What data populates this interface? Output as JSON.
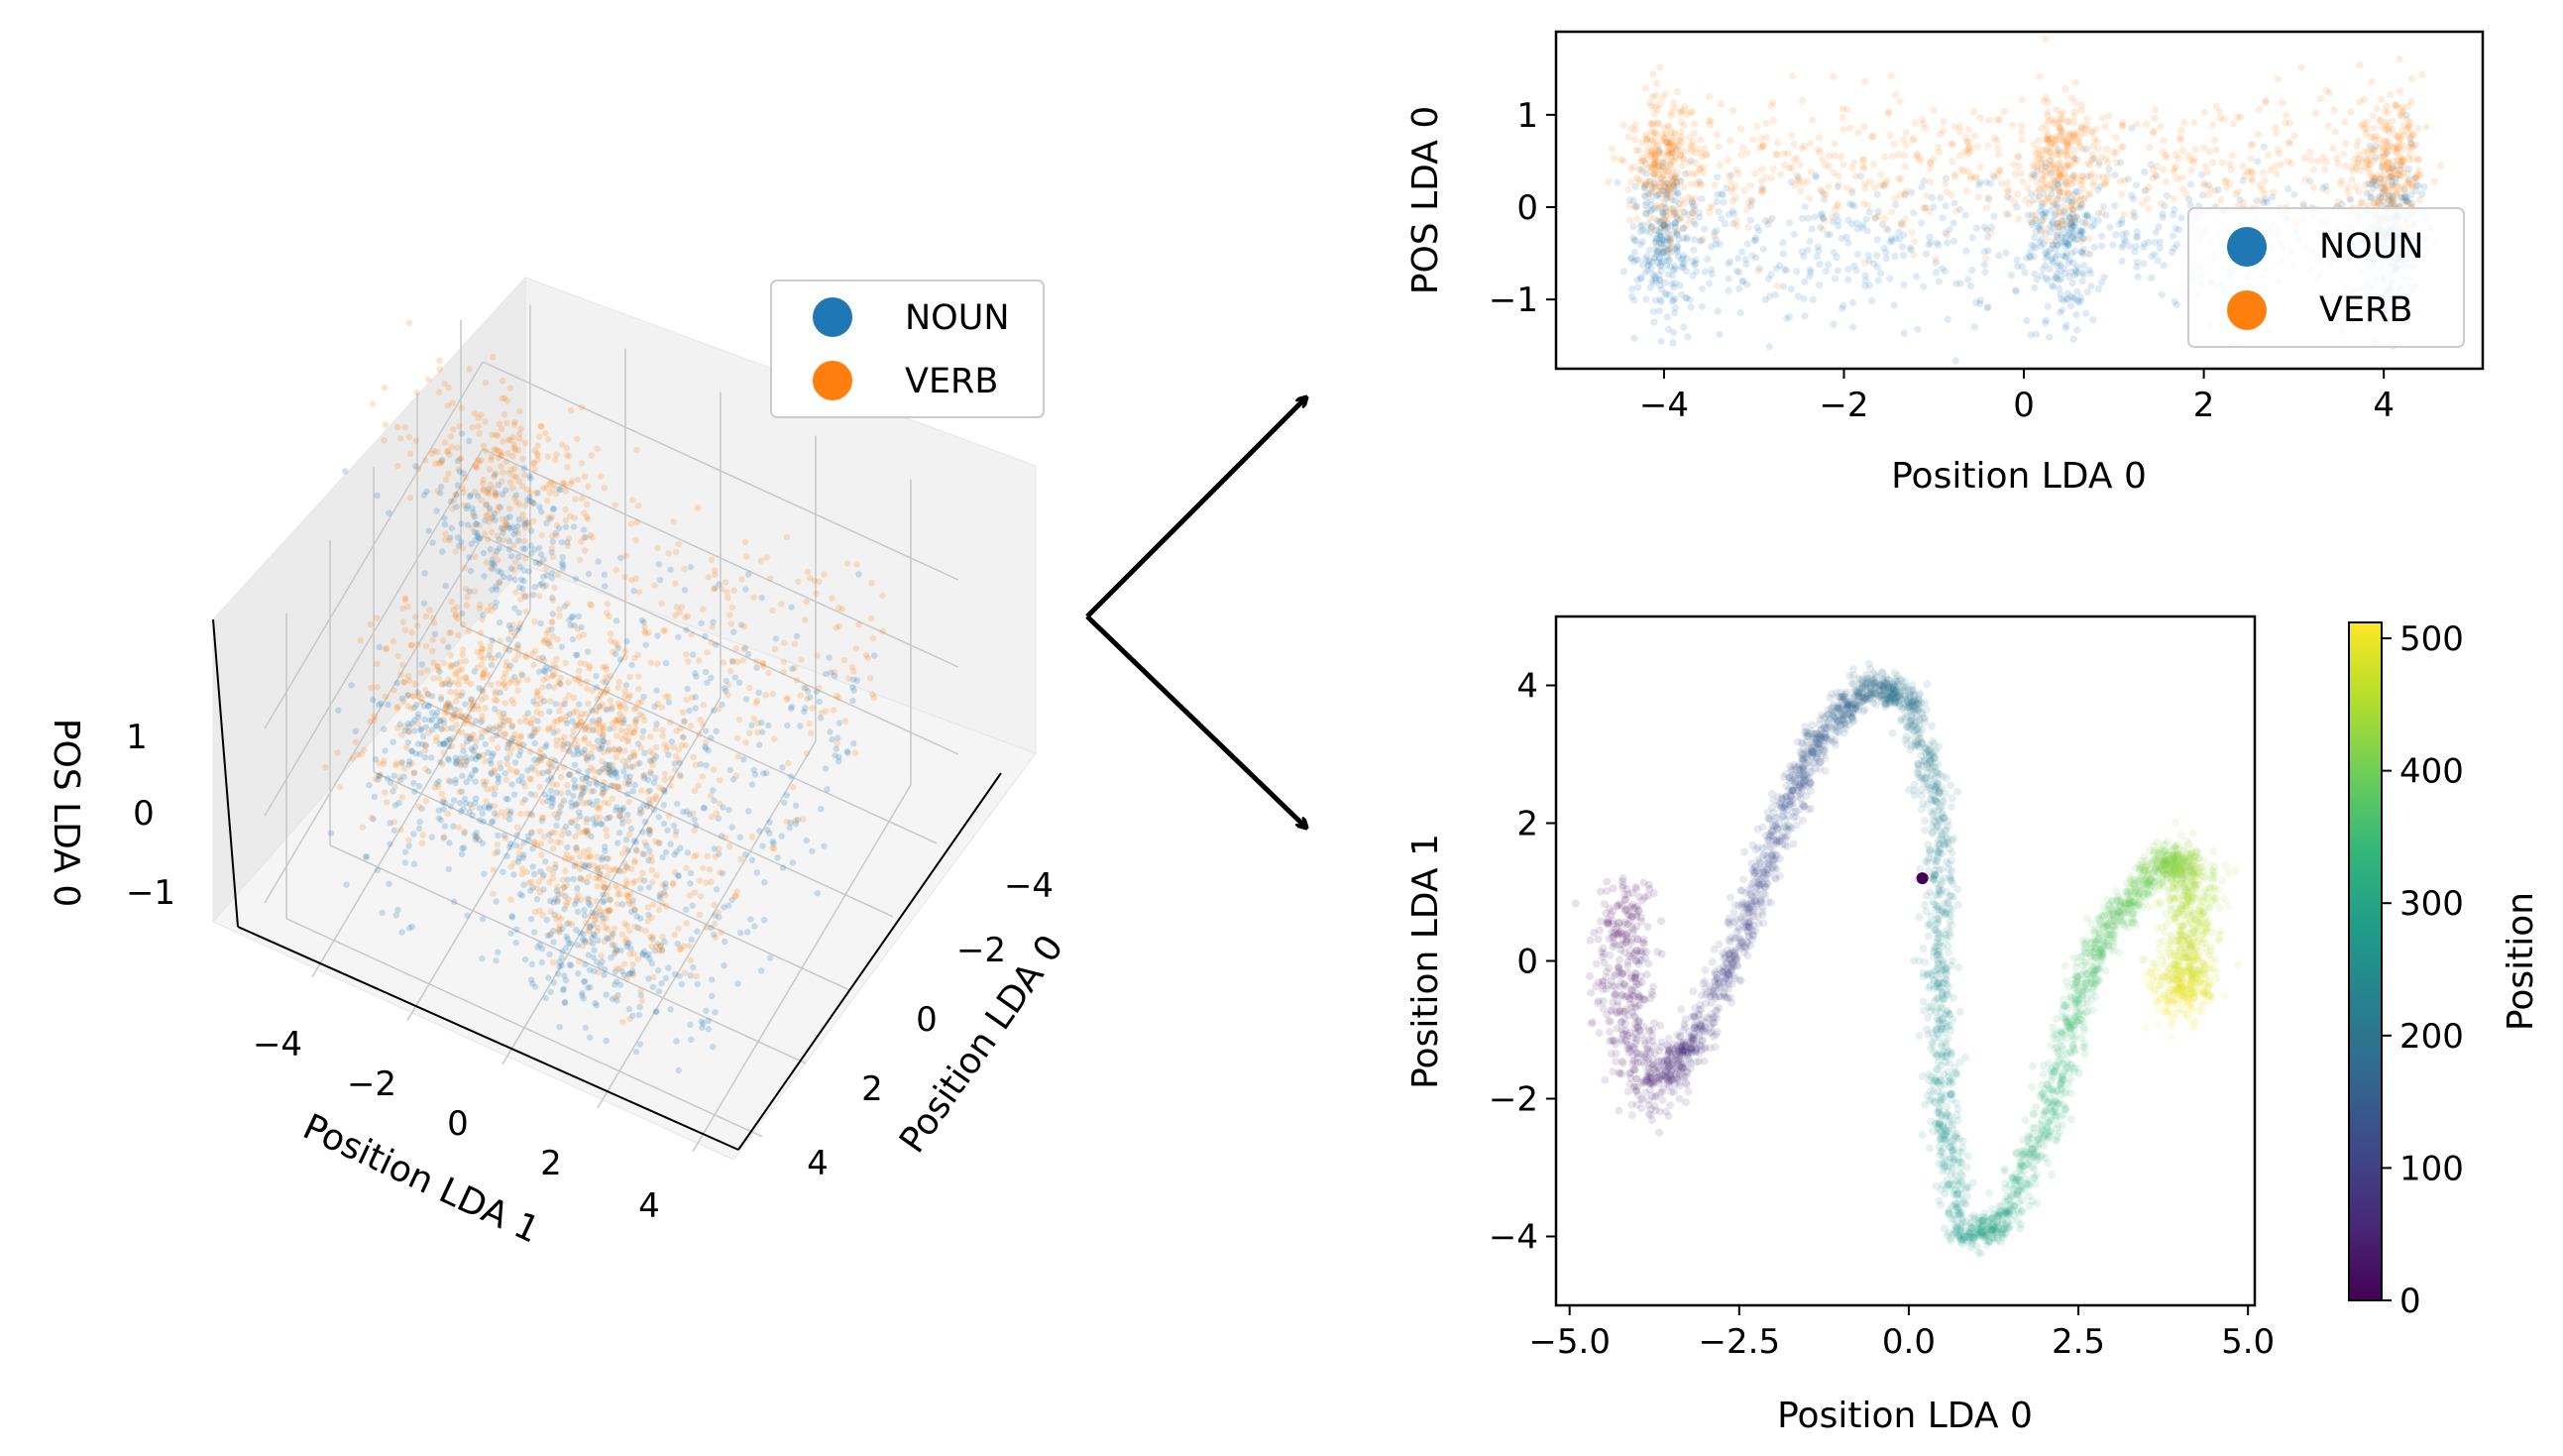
{
  "colors": {
    "noun": "#1f77b4",
    "verb": "#ff7f0e",
    "viridis": [
      "#440154",
      "#482878",
      "#3e4989",
      "#31688e",
      "#26828e",
      "#1f9e89",
      "#35b779",
      "#6ece58",
      "#b5de2b",
      "#fde725"
    ]
  },
  "legend": {
    "noun": "NOUN",
    "verb": "VERB"
  },
  "chart_data": [
    {
      "id": "3d",
      "type": "scatter",
      "projection": "3d",
      "xlabel": "Position LDA 0",
      "ylabel": "Position LDA 1",
      "zlabel": "POS LDA 0",
      "xticks": [
        "−4",
        "−2",
        "0",
        "2",
        "4"
      ],
      "yticks": [
        "−4",
        "−2",
        "0",
        "2",
        "4"
      ],
      "zticks": [
        "1",
        "0",
        "−1"
      ],
      "xlim": [
        -5,
        5
      ],
      "ylim": [
        -5,
        5
      ],
      "zlim": [
        -1.6,
        1.9
      ],
      "legend_position": "upper right",
      "clusters": [
        {
          "x": -4.0,
          "y": -4.2,
          "z": 0.2
        },
        {
          "x": 0.5,
          "y": 0.0,
          "z": 0.3
        },
        {
          "x": 4.1,
          "y": 1.5,
          "z": 0.3
        },
        {
          "x": 1.2,
          "y": -2.5,
          "z": 0.2
        }
      ]
    },
    {
      "id": "pos",
      "type": "scatter",
      "xlabel": "Position LDA 0",
      "ylabel": "POS LDA 0",
      "xlim": [
        -5.2,
        5.1
      ],
      "ylim": [
        -1.75,
        1.9
      ],
      "xticks": [
        {
          "v": -4,
          "t": "−4"
        },
        {
          "v": -2,
          "t": "−2"
        },
        {
          "v": 0,
          "t": "0"
        },
        {
          "v": 2,
          "t": "2"
        },
        {
          "v": 4,
          "t": "4"
        }
      ],
      "yticks": [
        {
          "v": 1,
          "t": "1"
        },
        {
          "v": 0,
          "t": "0"
        },
        {
          "v": -1,
          "t": "−1"
        }
      ],
      "legend_position": "lower right",
      "series": [
        {
          "name": "NOUN",
          "mean_y": -0.35,
          "spread_y": 0.42
        },
        {
          "name": "VERB",
          "mean_y": 0.45,
          "spread_y": 0.38
        }
      ],
      "dense_x_centers": [
        -4.0,
        0.45,
        4.1
      ]
    },
    {
      "id": "path",
      "type": "scatter",
      "xlabel": "Position LDA 0",
      "ylabel": "Position LDA 1",
      "xlim": [
        -5.2,
        5.1
      ],
      "ylim": [
        -5.0,
        5.0
      ],
      "xticks": [
        {
          "v": -5,
          "t": "−5.0"
        },
        {
          "v": -2.5,
          "t": "−2.5"
        },
        {
          "v": 0,
          "t": "0.0"
        },
        {
          "v": 2.5,
          "t": "2.5"
        },
        {
          "v": 5,
          "t": "5.0"
        }
      ],
      "yticks": [
        {
          "v": 4,
          "t": "4"
        },
        {
          "v": 2,
          "t": "2"
        },
        {
          "v": 0,
          "t": "0"
        },
        {
          "v": -2,
          "t": "−2"
        },
        {
          "v": -4,
          "t": "−4"
        }
      ],
      "colorbar": {
        "label": "Position",
        "range": [
          0,
          512
        ],
        "ticks": [
          {
            "v": 0,
            "t": "0"
          },
          {
            "v": 100,
            "t": "100"
          },
          {
            "v": 200,
            "t": "200"
          },
          {
            "v": 300,
            "t": "300"
          },
          {
            "v": 400,
            "t": "400"
          },
          {
            "v": 500,
            "t": "500"
          }
        ]
      },
      "path": [
        {
          "pos": 0,
          "x": -4.2,
          "y": 1.0
        },
        {
          "pos": 25,
          "x": -4.2,
          "y": -0.6
        },
        {
          "pos": 50,
          "x": -3.8,
          "y": -1.9
        },
        {
          "pos": 75,
          "x": -3.2,
          "y": -1.2
        },
        {
          "pos": 100,
          "x": -2.5,
          "y": 0.2
        },
        {
          "pos": 125,
          "x": -1.9,
          "y": 2.0
        },
        {
          "pos": 150,
          "x": -1.3,
          "y": 3.3
        },
        {
          "pos": 175,
          "x": -0.6,
          "y": 4.0
        },
        {
          "pos": 200,
          "x": 0.0,
          "y": 3.8
        },
        {
          "pos": 225,
          "x": 0.45,
          "y": 2.2
        },
        {
          "pos": 245,
          "x": 0.45,
          "y": 0.0
        },
        {
          "pos": 265,
          "x": 0.5,
          "y": -2.2
        },
        {
          "pos": 285,
          "x": 0.8,
          "y": -4.0
        },
        {
          "pos": 305,
          "x": 1.4,
          "y": -3.8
        },
        {
          "pos": 330,
          "x": 2.0,
          "y": -2.4
        },
        {
          "pos": 355,
          "x": 2.5,
          "y": -0.5
        },
        {
          "pos": 380,
          "x": 3.0,
          "y": 0.6
        },
        {
          "pos": 410,
          "x": 3.8,
          "y": 1.5
        },
        {
          "pos": 440,
          "x": 4.2,
          "y": 1.2
        },
        {
          "pos": 475,
          "x": 4.1,
          "y": 0.0
        },
        {
          "pos": 512,
          "x": 4.0,
          "y": -0.6
        }
      ],
      "outlier": {
        "pos": 0,
        "x": 0.2,
        "y": 1.2
      }
    }
  ]
}
